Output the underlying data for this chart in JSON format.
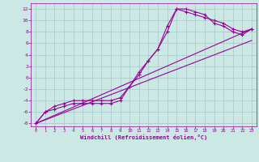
{
  "xlabel": "Windchill (Refroidissement éolien,°C)",
  "background_color": "#cce8e4",
  "grid_color": "#aacccc",
  "line_color": "#990099",
  "xlim": [
    -0.5,
    23.5
  ],
  "ylim": [
    -8.5,
    13
  ],
  "xticks": [
    0,
    1,
    2,
    3,
    4,
    5,
    6,
    7,
    8,
    9,
    10,
    11,
    12,
    13,
    14,
    15,
    16,
    17,
    18,
    19,
    20,
    21,
    22,
    23
  ],
  "yticks": [
    -8,
    -6,
    -4,
    -2,
    0,
    2,
    4,
    6,
    8,
    10,
    12
  ],
  "series": [
    {
      "x": [
        0,
        1,
        2,
        3,
        4,
        5,
        6,
        7,
        8,
        9,
        10,
        11,
        12,
        13,
        14,
        15,
        16,
        17,
        18,
        19,
        20,
        21,
        22,
        23
      ],
      "y": [
        -8,
        -6,
        -5.5,
        -5,
        -4.5,
        -4.5,
        -4.5,
        -4.5,
        -4.5,
        -4,
        -1.5,
        0.5,
        3,
        5,
        9,
        12,
        12,
        11.5,
        11,
        9.5,
        9,
        8,
        7.5,
        8.5
      ],
      "marker": true
    },
    {
      "x": [
        0,
        1,
        2,
        3,
        4,
        5,
        6,
        7,
        8,
        9,
        10,
        11,
        12,
        13,
        14,
        15,
        16,
        17,
        18,
        19,
        20,
        21,
        22,
        23
      ],
      "y": [
        -8,
        -6,
        -5,
        -4.5,
        -4,
        -4,
        -4,
        -4,
        -4,
        -3.5,
        -1.5,
        1,
        3,
        5,
        8,
        12,
        11.5,
        11,
        10.5,
        10,
        9.5,
        8.5,
        8,
        8.5
      ],
      "marker": true
    },
    {
      "x": [
        0,
        23
      ],
      "y": [
        -8,
        8.5
      ],
      "marker": false
    },
    {
      "x": [
        0,
        23
      ],
      "y": [
        -8,
        6.5
      ],
      "marker": false
    }
  ]
}
